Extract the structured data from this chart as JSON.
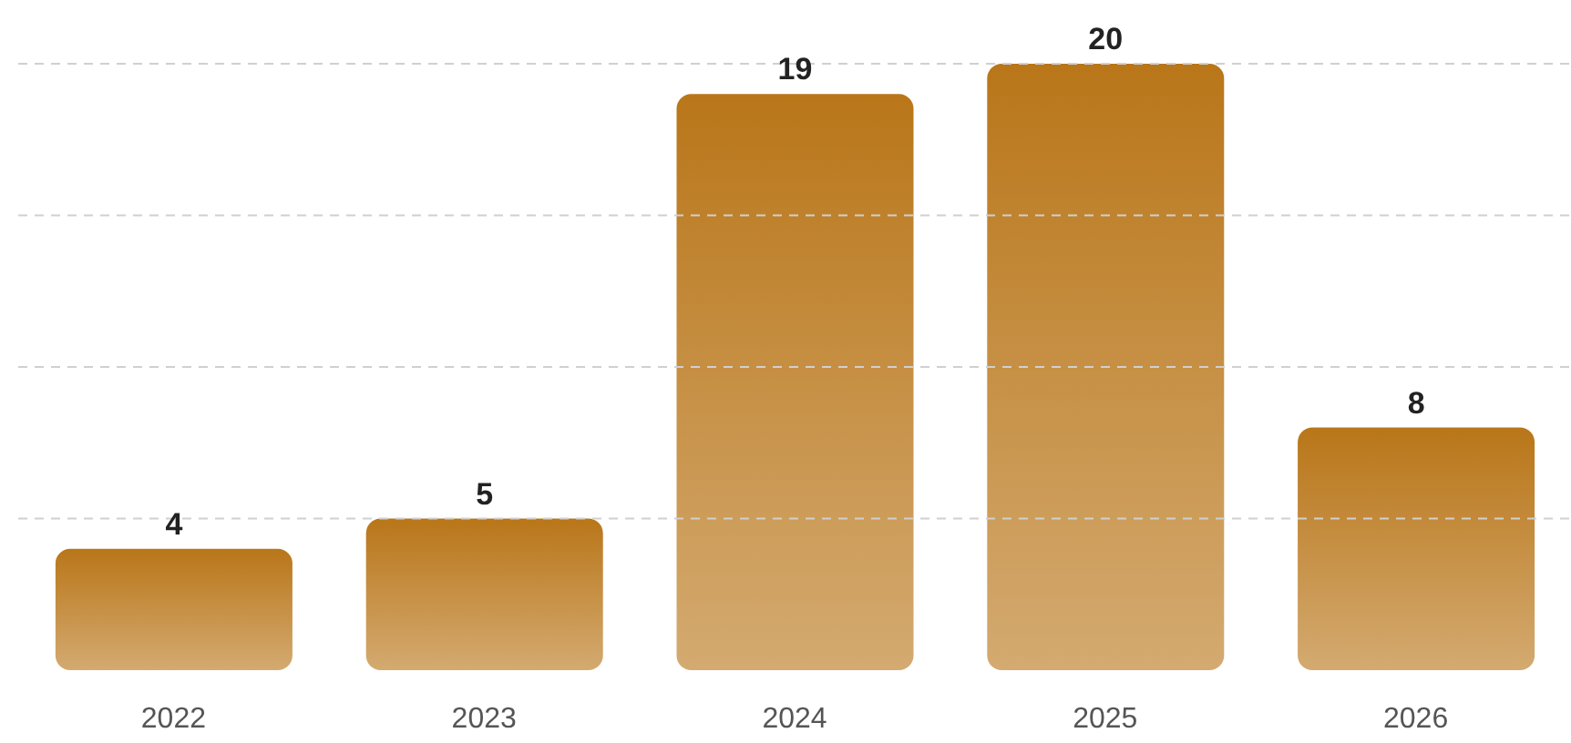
{
  "chart_data": {
    "type": "bar",
    "categories": [
      "2022",
      "2023",
      "2024",
      "2025",
      "2026"
    ],
    "values": [
      4,
      5,
      19,
      20,
      8
    ],
    "color": "#b97619",
    "ylim": [
      0,
      20
    ],
    "yticks": [
      {
        "value": 5,
        "label": null
      },
      {
        "value": 10,
        "label": null
      },
      {
        "value": 15,
        "label": null
      },
      {
        "value": 20,
        "label": null
      }
    ],
    "grid": "y",
    "tick_labels": "x",
    "data_labels": true
  }
}
